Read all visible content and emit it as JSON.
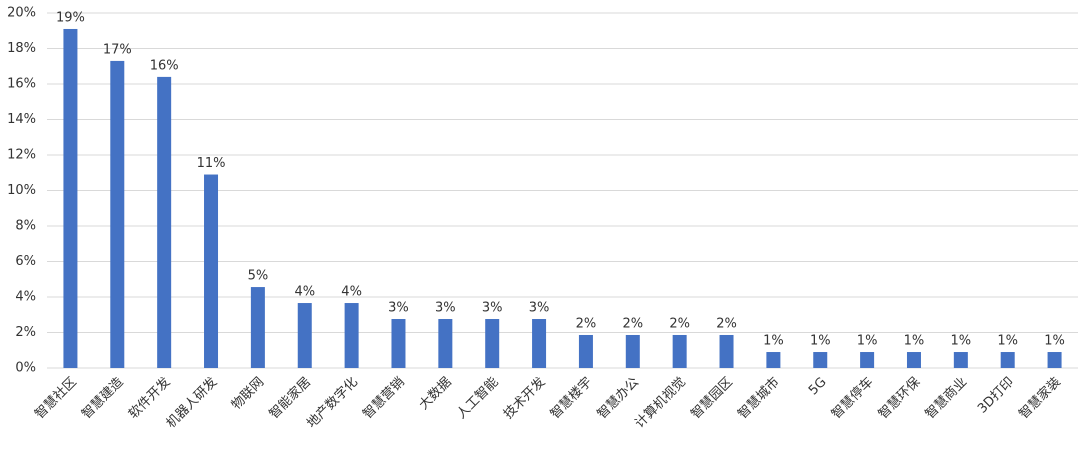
{
  "chart_data": {
    "type": "bar",
    "categories": [
      "智慧社区",
      "智慧建造",
      "软件开发",
      "机器人研发",
      "物联网",
      "智能家居",
      "地产数字化",
      "智慧营销",
      "大数据",
      "人工智能",
      "技术开发",
      "智慧楼宇",
      "智慧办公",
      "计算机视觉",
      "智慧园区",
      "智慧城市",
      "5G",
      "智慧停车",
      "智慧环保",
      "智慧商业",
      "3D打印",
      "智慧家装"
    ],
    "values": [
      19.1,
      17.3,
      16.4,
      10.9,
      4.56,
      3.66,
      3.66,
      2.76,
      2.76,
      2.76,
      2.76,
      1.86,
      1.86,
      1.86,
      1.86,
      0.9,
      0.9,
      0.9,
      0.9,
      0.9,
      0.9,
      0.9
    ],
    "value_labels": [
      "19%",
      "17%",
      "16%",
      "11%",
      "5%",
      "4%",
      "4%",
      "3%",
      "3%",
      "3%",
      "3%",
      "2%",
      "2%",
      "2%",
      "2%",
      "1%",
      "1%",
      "1%",
      "1%",
      "1%",
      "1%",
      "1%"
    ],
    "color": "#4472c4",
    "ylim": [
      0,
      20
    ],
    "yticks": [
      {
        "value": 0,
        "label": "0%"
      },
      {
        "value": 2,
        "label": "2%"
      },
      {
        "value": 4,
        "label": "4%"
      },
      {
        "value": 6,
        "label": "6%"
      },
      {
        "value": 8,
        "label": "8%"
      },
      {
        "value": 10,
        "label": "10%"
      },
      {
        "value": 12,
        "label": "12%"
      },
      {
        "value": 14,
        "label": "14%"
      },
      {
        "value": 16,
        "label": "16%"
      },
      {
        "value": 18,
        "label": "18%"
      },
      {
        "value": 20,
        "label": "20%"
      }
    ],
    "grid": true
  }
}
